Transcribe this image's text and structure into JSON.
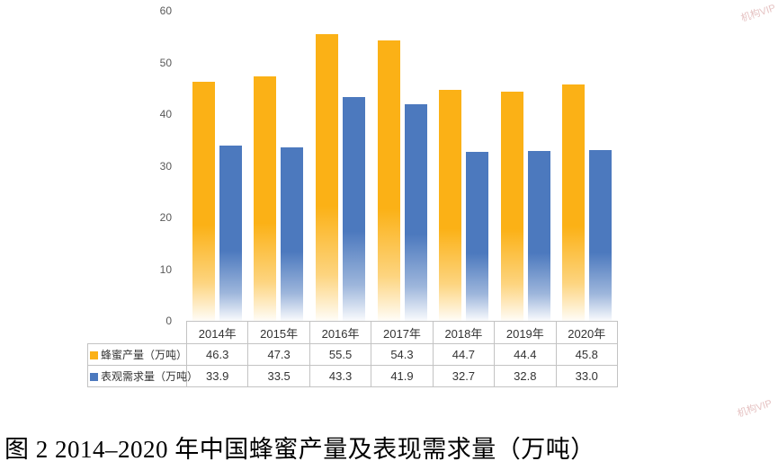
{
  "caption": "图 2 2014–2020 年中国蜂蜜产量及表现需求量（万吨）",
  "watermark": {
    "text": "机构VIP"
  },
  "colors": {
    "production": "#FBB116",
    "demand": "#4C79BE",
    "table_border": "#c3c3c3"
  },
  "chart_data": {
    "type": "bar",
    "title": "",
    "categories": [
      "2014年",
      "2015年",
      "2016年",
      "2017年",
      "2018年",
      "2019年",
      "2020年"
    ],
    "series": [
      {
        "key": "production",
        "name": "蜂蜜产量（万吨）",
        "color": "#FBB116",
        "values": [
          46.3,
          47.3,
          55.5,
          54.3,
          44.7,
          44.4,
          45.8
        ]
      },
      {
        "key": "demand",
        "name": "表观需求量（万吨）",
        "color": "#4C79BE",
        "values": [
          33.9,
          33.5,
          43.3,
          41.9,
          32.7,
          32.8,
          33.0
        ]
      }
    ],
    "ylim": [
      0,
      60
    ],
    "yticks": [
      0,
      10,
      20,
      30,
      40,
      50,
      60
    ],
    "grid": false,
    "legend_position": "data-table-left",
    "value_decimals": 1
  }
}
